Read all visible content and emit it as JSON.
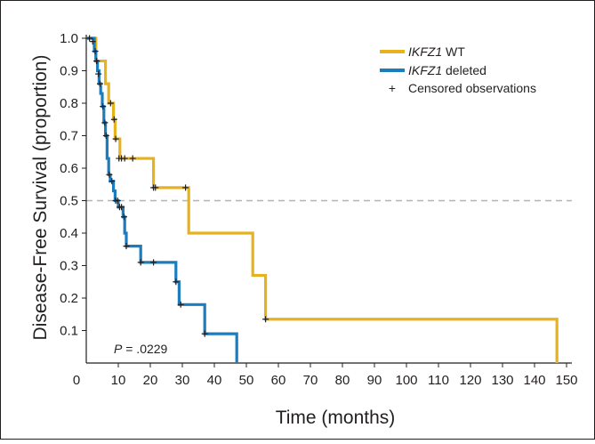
{
  "chart_data": {
    "type": "line",
    "chart_kind": "kaplan-meier step plot",
    "xlabel": "Time (months)",
    "ylabel": "Disease-Free Survival (proportion)",
    "xlim": [
      0,
      150
    ],
    "ylim": [
      0,
      1.0
    ],
    "x_ticks": [
      "0",
      "10",
      "20",
      "30",
      "40",
      "50",
      "60",
      "70",
      "80",
      "90",
      "100",
      "110",
      "120",
      "130",
      "140",
      "150"
    ],
    "y_ticks": [
      "0.1",
      "0.2",
      "0.3",
      "0.4",
      "0.5",
      "0.6",
      "0.7",
      "0.8",
      "0.9",
      "1.0"
    ],
    "reference_line": {
      "y": 0.5,
      "style": "dashed",
      "color": "#b3b3b3"
    },
    "legend": {
      "position": "top-right",
      "entries": [
        {
          "label_italic": "IKFZ1",
          "label_rest": " WT",
          "color": "#e6b21e",
          "type": "line"
        },
        {
          "label_italic": "IKFZ1",
          "label_rest": " deleted",
          "color": "#1b7dbd",
          "type": "line"
        },
        {
          "symbol": "+",
          "label": "Censored observations",
          "type": "marker"
        }
      ]
    },
    "p_value": {
      "prefix": "P",
      "text": " = .0229"
    },
    "series": [
      {
        "name": "IKFZ1 WT",
        "color": "#e6b21e",
        "steps": [
          [
            0,
            1.0
          ],
          [
            3,
            0.93
          ],
          [
            6,
            0.86
          ],
          [
            7,
            0.8
          ],
          [
            8.5,
            0.75
          ],
          [
            9,
            0.69
          ],
          [
            10.5,
            0.63
          ],
          [
            21,
            0.54
          ],
          [
            32,
            0.4
          ],
          [
            52,
            0.27
          ],
          [
            56,
            0.135
          ],
          [
            147,
            0.0
          ]
        ],
        "end_x": 147,
        "censored": [
          [
            3.2,
            0.93
          ],
          [
            7.6,
            0.8
          ],
          [
            8.7,
            0.75
          ],
          [
            9.2,
            0.69
          ],
          [
            10.2,
            0.63
          ],
          [
            11.0,
            0.63
          ],
          [
            12.0,
            0.63
          ],
          [
            14.5,
            0.63
          ],
          [
            21.0,
            0.54
          ],
          [
            21.6,
            0.54
          ],
          [
            31.0,
            0.54
          ],
          [
            56.0,
            0.135
          ]
        ]
      },
      {
        "name": "IKFZ1 deleted",
        "color": "#1b7dbd",
        "steps": [
          [
            0,
            1.0
          ],
          [
            2.5,
            0.96
          ],
          [
            3,
            0.93
          ],
          [
            3.5,
            0.9
          ],
          [
            4,
            0.86
          ],
          [
            4.5,
            0.83
          ],
          [
            5,
            0.79
          ],
          [
            5.5,
            0.74
          ],
          [
            6,
            0.7
          ],
          [
            6.5,
            0.63
          ],
          [
            7,
            0.58
          ],
          [
            7.5,
            0.56
          ],
          [
            8.5,
            0.53
          ],
          [
            9,
            0.5
          ],
          [
            10,
            0.48
          ],
          [
            11.5,
            0.45
          ],
          [
            12,
            0.4
          ],
          [
            12.5,
            0.36
          ],
          [
            17,
            0.31
          ],
          [
            28,
            0.25
          ],
          [
            29,
            0.18
          ],
          [
            37,
            0.09
          ],
          [
            47,
            0.0
          ]
        ],
        "end_x": 47,
        "censored": [
          [
            1.0,
            1.0
          ],
          [
            2.0,
            0.99
          ],
          [
            2.8,
            0.96
          ],
          [
            3.3,
            0.93
          ],
          [
            3.8,
            0.89
          ],
          [
            4.3,
            0.86
          ],
          [
            5.2,
            0.79
          ],
          [
            5.8,
            0.74
          ],
          [
            6.2,
            0.7
          ],
          [
            7.2,
            0.58
          ],
          [
            8.0,
            0.56
          ],
          [
            9.2,
            0.5
          ],
          [
            9.8,
            0.5
          ],
          [
            10.4,
            0.48
          ],
          [
            11.0,
            0.48
          ],
          [
            11.8,
            0.45
          ],
          [
            12.5,
            0.36
          ],
          [
            17.0,
            0.31
          ],
          [
            21.0,
            0.31
          ],
          [
            28.0,
            0.25
          ],
          [
            29.5,
            0.18
          ],
          [
            37.0,
            0.09
          ]
        ]
      }
    ]
  }
}
